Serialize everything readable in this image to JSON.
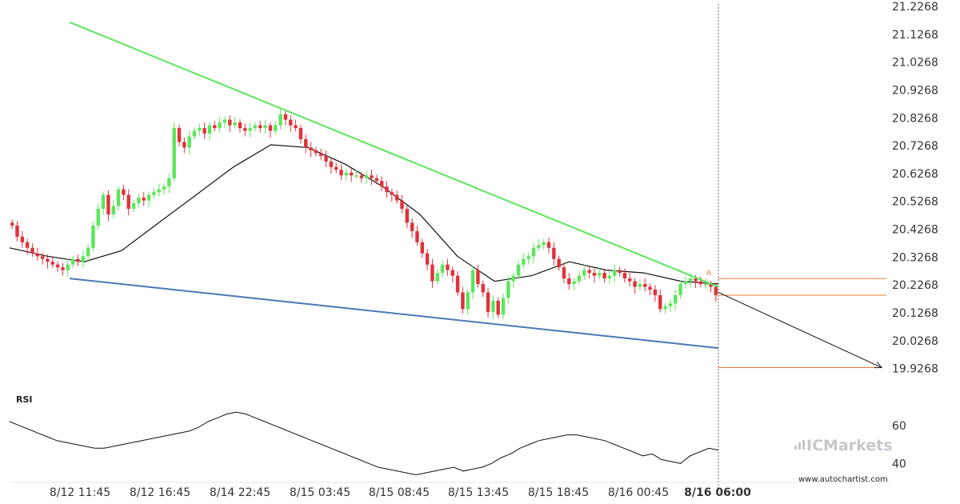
{
  "chart_data": {
    "type": "candlestick",
    "y_ticks": [
      "21.2268",
      "21.1268",
      "21.0268",
      "20.9268",
      "20.8268",
      "20.7268",
      "20.6268",
      "20.5268",
      "20.4268",
      "20.3268",
      "20.2268",
      "20.1268",
      "20.0268",
      "19.9268"
    ],
    "ylim": [
      19.8768,
      21.2268
    ],
    "x_ticks": [
      "8/12 11:45",
      "8/12 16:45",
      "8/14 22:45",
      "8/15 03:45",
      "8/15 08:45",
      "8/15 13:45",
      "8/15 18:45",
      "8/16 00:45",
      "8/16 06:00"
    ],
    "x_tick_bold": "8/16 06:00",
    "candle_count": 140,
    "closes": [
      20.44,
      20.4,
      20.38,
      20.36,
      20.34,
      20.33,
      20.32,
      20.31,
      20.3,
      20.29,
      20.28,
      20.3,
      20.32,
      20.31,
      20.33,
      20.36,
      20.44,
      20.5,
      20.55,
      20.48,
      20.51,
      20.57,
      20.55,
      20.5,
      20.52,
      20.54,
      20.53,
      20.55,
      20.56,
      20.57,
      20.58,
      20.61,
      20.79,
      20.74,
      20.72,
      20.76,
      20.78,
      20.79,
      20.77,
      20.8,
      20.79,
      20.81,
      20.82,
      20.8,
      20.81,
      20.79,
      20.78,
      20.79,
      20.8,
      20.79,
      20.8,
      20.78,
      20.8,
      20.84,
      20.82,
      20.8,
      20.79,
      20.75,
      20.72,
      20.71,
      20.7,
      20.69,
      20.67,
      20.65,
      20.64,
      20.62,
      20.63,
      20.62,
      20.62,
      20.61,
      20.62,
      20.61,
      20.6,
      20.58,
      20.56,
      20.55,
      20.53,
      20.5,
      20.45,
      20.42,
      20.38,
      20.34,
      20.3,
      20.24,
      20.27,
      20.3,
      20.28,
      20.26,
      20.2,
      20.14,
      20.2,
      20.28,
      20.23,
      20.2,
      20.13,
      20.17,
      20.12,
      20.18,
      20.24,
      20.26,
      20.3,
      20.32,
      20.33,
      20.36,
      20.37,
      20.38,
      20.36,
      20.32,
      20.29,
      20.25,
      20.23,
      20.24,
      20.26,
      20.28,
      20.27,
      20.26,
      20.27,
      20.25,
      20.26,
      20.28,
      20.27,
      20.25,
      20.24,
      20.22,
      20.23,
      20.22,
      20.21,
      20.19,
      20.14,
      20.15,
      20.16,
      20.19,
      20.23,
      20.24,
      20.25,
      20.24,
      20.23,
      20.23,
      20.22,
      20.19
    ],
    "ma": [
      20.36,
      20.33,
      20.31,
      20.35,
      20.45,
      20.55,
      20.65,
      20.73,
      20.72,
      20.66,
      20.58,
      20.48,
      20.33,
      20.24,
      20.26,
      20.31,
      20.28,
      20.27,
      20.24,
      20.23
    ],
    "resistance_line": {
      "from": [
        3,
        21.17
      ],
      "to": [
        39,
        20.87
      ]
    },
    "support_line": {
      "from": [
        3,
        20.25
      ],
      "to": [
        39,
        20.0
      ]
    },
    "forecast": {
      "from_index": 139,
      "from_price": 20.2,
      "to_price": 19.93
    },
    "level_lines": [
      20.25,
      20.19,
      19.93
    ],
    "pattern_marker": "A",
    "rsi_label": "RSI",
    "rsi_ticks": [
      "60",
      "40"
    ],
    "rsi_range": [
      30,
      70
    ],
    "rsi": [
      62,
      60,
      58,
      56,
      54,
      52,
      51,
      50,
      49,
      48,
      48,
      49,
      50,
      51,
      52,
      53,
      54,
      55,
      56,
      57,
      59,
      62,
      64,
      66,
      67,
      66,
      64,
      62,
      60,
      58,
      56,
      54,
      52,
      50,
      48,
      46,
      44,
      42,
      40,
      38,
      37,
      36,
      35,
      34,
      35,
      36,
      37,
      38,
      36,
      37,
      38,
      40,
      43,
      45,
      48,
      50,
      52,
      53,
      54,
      55,
      55,
      54,
      53,
      52,
      50,
      48,
      46,
      44,
      45,
      42,
      41,
      40,
      44,
      46,
      48,
      47
    ]
  },
  "colors": {
    "up": "#5ce65c",
    "down": "#e0323c",
    "resistance": "#5ce65c",
    "support": "#4a78b4",
    "level": "#e8793a",
    "ma": "#111111",
    "rsi": "#111111",
    "axis_text": "#333333"
  },
  "watermark": {
    "brand": "ICMarkets",
    "site": "www.autochartist.com"
  }
}
